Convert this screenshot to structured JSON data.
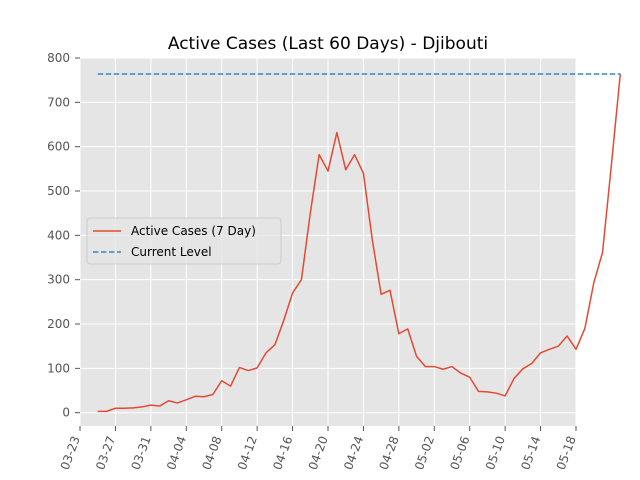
{
  "chart_data": {
    "type": "line",
    "title": "Active Cases (Last 60 Days) - Djibouti",
    "xlabel": "",
    "ylabel": "",
    "x_ticks": [
      "03-23",
      "03-27",
      "03-31",
      "04-04",
      "04-08",
      "04-12",
      "04-16",
      "04-20",
      "04-24",
      "04-28",
      "05-02",
      "05-06",
      "05-10",
      "05-14",
      "05-18"
    ],
    "xlim": [
      "03-23",
      "05-18"
    ],
    "ylim": [
      -30,
      800
    ],
    "y_ticks": [
      0,
      100,
      200,
      300,
      400,
      500,
      600,
      700,
      800
    ],
    "grid": true,
    "legend_position": "center-left",
    "series": [
      {
        "name": "Active Cases (7 Day)",
        "color": "#e24a33",
        "style": "solid",
        "points": [
          [
            "03-25",
            3
          ],
          [
            "03-26",
            3
          ],
          [
            "03-27",
            10
          ],
          [
            "03-28",
            10
          ],
          [
            "03-29",
            11
          ],
          [
            "03-30",
            13
          ],
          [
            "03-31",
            17
          ],
          [
            "04-01",
            15
          ],
          [
            "04-02",
            27
          ],
          [
            "04-03",
            22
          ],
          [
            "04-04",
            29
          ],
          [
            "04-05",
            37
          ],
          [
            "04-06",
            36
          ],
          [
            "04-07",
            41
          ],
          [
            "04-08",
            72
          ],
          [
            "04-09",
            60
          ],
          [
            "04-10",
            102
          ],
          [
            "04-11",
            95
          ],
          [
            "04-12",
            101
          ],
          [
            "04-13",
            135
          ],
          [
            "04-14",
            153
          ],
          [
            "04-15",
            208
          ],
          [
            "04-16",
            270
          ],
          [
            "04-17",
            300
          ],
          [
            "04-18",
            450
          ],
          [
            "04-19",
            582
          ],
          [
            "04-20",
            545
          ],
          [
            "04-21",
            632
          ],
          [
            "04-22",
            548
          ],
          [
            "04-23",
            582
          ],
          [
            "04-24",
            540
          ],
          [
            "04-25",
            390
          ],
          [
            "04-26",
            267
          ],
          [
            "04-27",
            276
          ],
          [
            "04-28",
            178
          ],
          [
            "04-29",
            189
          ],
          [
            "04-30",
            127
          ],
          [
            "05-01",
            104
          ],
          [
            "05-02",
            104
          ],
          [
            "05-03",
            98
          ],
          [
            "05-04",
            104
          ],
          [
            "05-05",
            89
          ],
          [
            "05-06",
            80
          ],
          [
            "05-07",
            48
          ],
          [
            "05-08",
            47
          ],
          [
            "05-09",
            44
          ],
          [
            "05-10",
            38
          ],
          [
            "05-11",
            77
          ],
          [
            "05-12",
            99
          ],
          [
            "05-13",
            111
          ],
          [
            "05-14",
            135
          ],
          [
            "05-15",
            143
          ],
          [
            "05-16",
            150
          ],
          [
            "05-17",
            173
          ],
          [
            "05-18",
            143
          ],
          [
            "05-19",
            190
          ],
          [
            "05-20",
            292
          ],
          [
            "05-21",
            362
          ],
          [
            "05-22",
            560
          ],
          [
            "05-23",
            764
          ]
        ]
      },
      {
        "name": "Current Level",
        "color": "#348abd",
        "style": "dashed",
        "points": [
          [
            "03-25",
            764
          ],
          [
            "05-23",
            764
          ]
        ]
      }
    ]
  }
}
